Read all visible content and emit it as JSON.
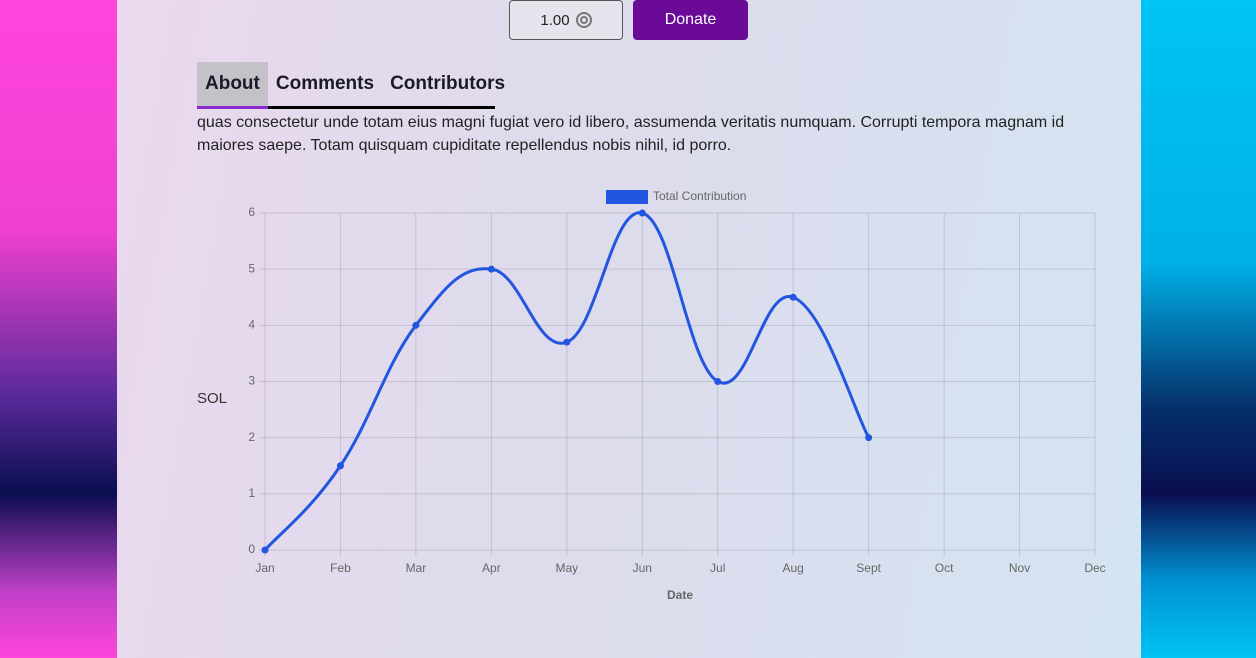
{
  "donate": {
    "amount": "1.00",
    "button": "Donate"
  },
  "tabs": [
    "About",
    "Comments",
    "Contributors"
  ],
  "about_text": "quas consectetur unde totam eius magni fugiat vero id libero, assumenda veritatis numquam. Corrupti tempora magnam id maiores saepe. Totam quisquam cupiditate repellendus nobis nihil, id porro.",
  "chart_data": {
    "type": "line",
    "categories": [
      "Jan",
      "Feb",
      "Mar",
      "Apr",
      "May",
      "Jun",
      "Jul",
      "Aug",
      "Sept",
      "Oct",
      "Nov",
      "Dec"
    ],
    "series": [
      {
        "name": "Total Contribution",
        "color": "#2356e0",
        "values": [
          0,
          1.5,
          4,
          5,
          3.7,
          6,
          3,
          4.5,
          2,
          null,
          null,
          null
        ]
      }
    ],
    "ylim": [
      0,
      6
    ],
    "yticks": [
      0,
      1,
      2,
      3,
      4,
      5,
      6
    ],
    "y_label": "SOL",
    "x_label": "Date",
    "grid": true,
    "legend": "top"
  }
}
